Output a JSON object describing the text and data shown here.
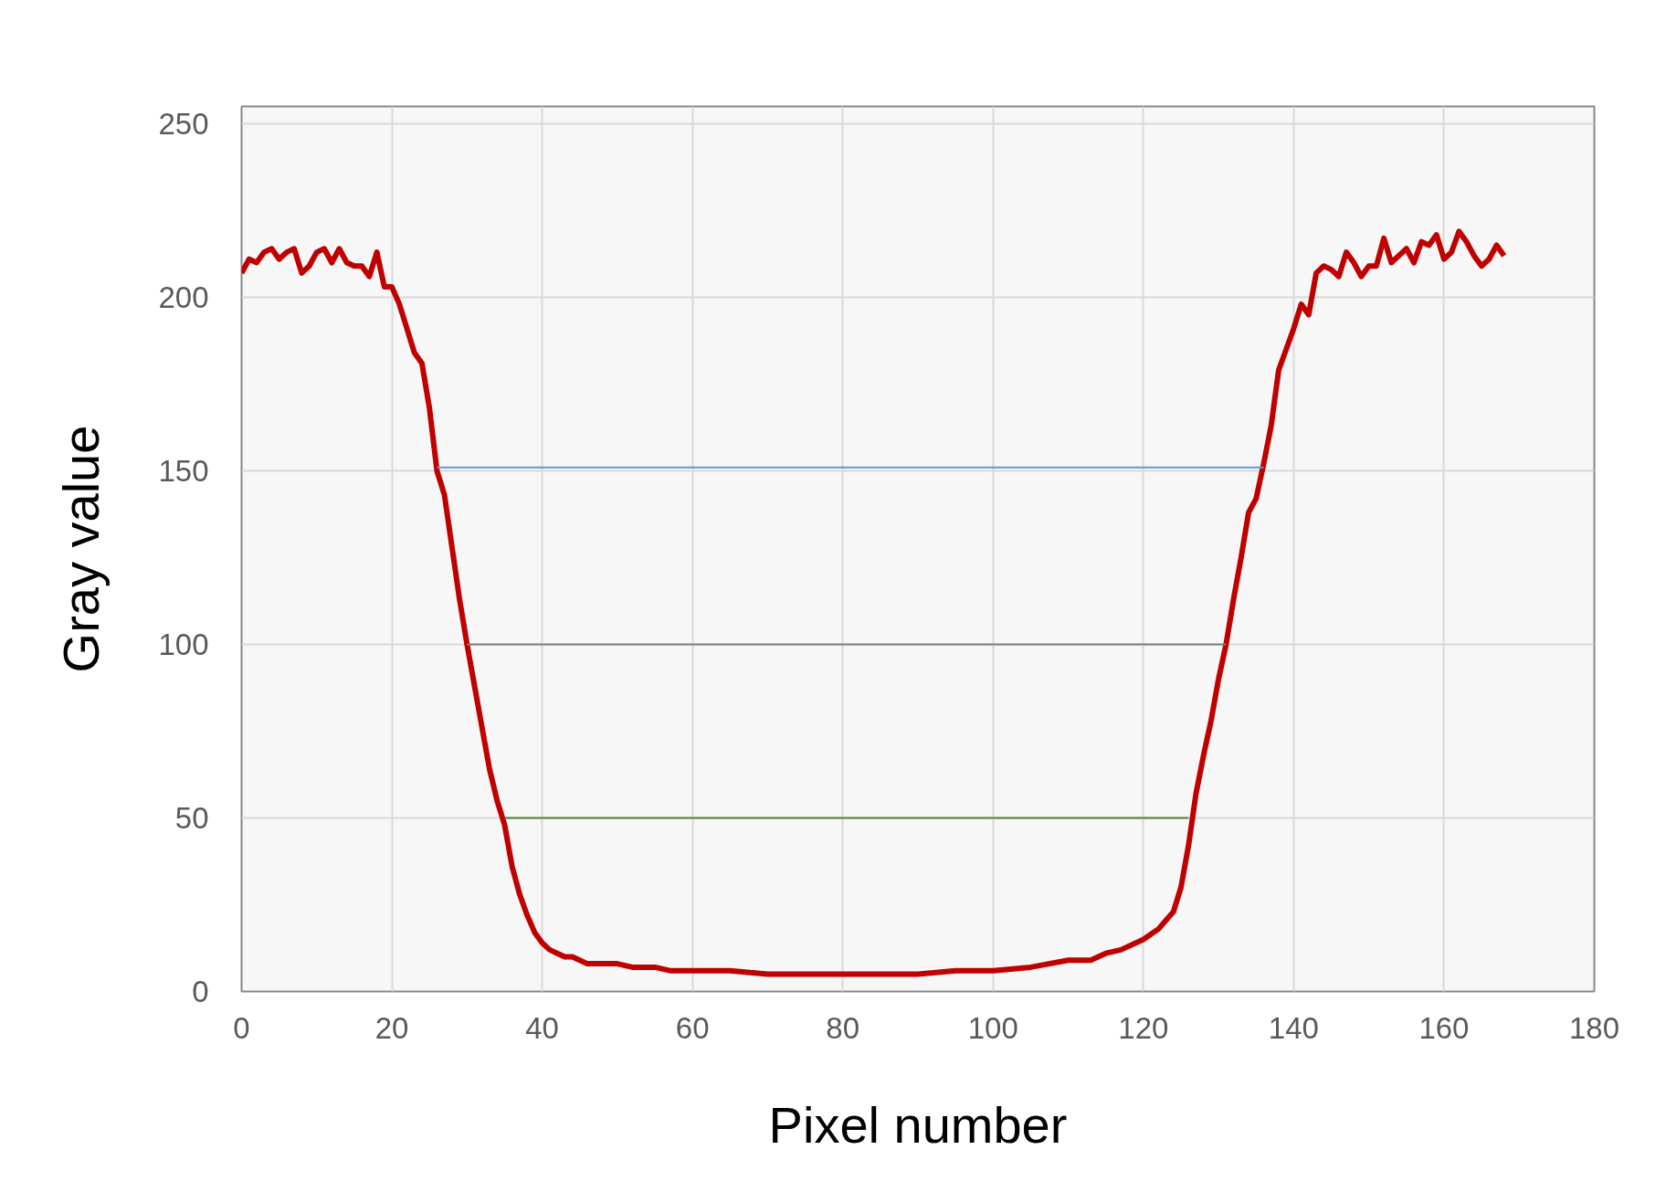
{
  "chart_data": {
    "type": "line",
    "xlabel": "Pixel number",
    "ylabel": "Gray value",
    "xlim": [
      0,
      180
    ],
    "xticks": [
      0,
      20,
      40,
      60,
      80,
      100,
      120,
      140,
      160,
      180
    ],
    "ylim": [
      0,
      255
    ],
    "yticks": [
      0,
      50,
      100,
      150,
      200,
      250
    ],
    "grid": true,
    "marker": "none",
    "line_style": "solid",
    "series": [
      {
        "color": "#c00000",
        "x": [
          0,
          1,
          2,
          3,
          4,
          5,
          6,
          7,
          8,
          9,
          10,
          11,
          12,
          13,
          14,
          15,
          16,
          17,
          18,
          19,
          20,
          21,
          22,
          23,
          24,
          25,
          26,
          27,
          28,
          29,
          30,
          31,
          32,
          33,
          34,
          35,
          36,
          37,
          38,
          39,
          40,
          41,
          42,
          43,
          44,
          45,
          46,
          48,
          50,
          52,
          55,
          57,
          60,
          65,
          70,
          75,
          80,
          85,
          90,
          95,
          100,
          105,
          110,
          113,
          115,
          117,
          120,
          122,
          124,
          125,
          126,
          127,
          128,
          129,
          130,
          131,
          132,
          133,
          134,
          135,
          136,
          137,
          138,
          139,
          140,
          141,
          142,
          143,
          144,
          145,
          146,
          147,
          148,
          149,
          150,
          151,
          152,
          153,
          154,
          155,
          156,
          157,
          158,
          159,
          160,
          161,
          162,
          163,
          164,
          165,
          166,
          167,
          168
        ],
        "values": [
          207,
          211,
          210,
          213,
          214,
          211,
          213,
          214,
          207,
          209,
          213,
          214,
          210,
          214,
          210,
          209,
          209,
          206,
          213,
          203,
          203,
          198,
          191,
          184,
          181,
          168,
          150,
          143,
          128,
          113,
          100,
          88,
          76,
          64,
          55,
          48,
          36,
          28,
          22,
          17,
          14,
          12,
          11,
          10,
          10,
          9,
          8,
          8,
          8,
          7,
          7,
          6,
          6,
          6,
          5,
          5,
          5,
          5,
          5,
          6,
          6,
          7,
          9,
          9,
          11,
          12,
          15,
          18,
          23,
          30,
          42,
          57,
          68,
          78,
          90,
          100,
          113,
          125,
          138,
          142,
          152,
          163,
          179,
          185,
          191,
          198,
          195,
          207,
          209,
          208,
          206,
          213,
          210,
          206,
          209,
          209,
          217,
          210,
          212,
          214,
          210,
          216,
          215,
          218,
          211,
          213,
          219,
          216,
          212,
          209,
          211,
          215,
          212
        ]
      },
      {
        "color": "#5b9bd5",
        "x": [
          26,
          136
        ],
        "values": [
          151,
          151
        ]
      },
      {
        "color": "#7f7f7f",
        "x": [
          30,
          131
        ],
        "values": [
          100,
          100
        ]
      },
      {
        "color": "#548235",
        "x": [
          35,
          126
        ],
        "values": [
          50,
          50
        ]
      }
    ]
  }
}
